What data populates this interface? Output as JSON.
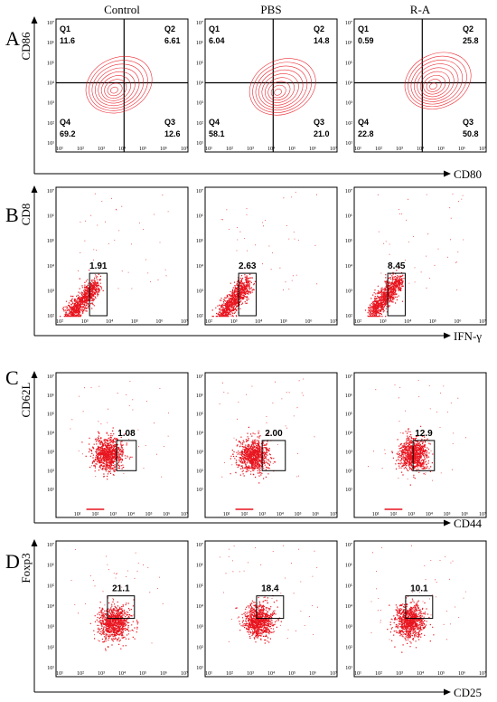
{
  "chart_data": {
    "type": "scatter",
    "column_labels": [
      "Control",
      "PBS",
      "R-A"
    ],
    "tick_labels": [
      "10¹",
      "10²",
      "10³",
      "10⁴",
      "10⁵",
      "10⁶",
      "10⁷"
    ],
    "color": "#e8141e",
    "contour_color": "#e8141e",
    "panels": [
      {
        "letter": "A",
        "plot": "contour",
        "ylabel": "CD86",
        "xlabel": "CD80",
        "quadrant_labels": [
          "Q1",
          "Q2",
          "Q3",
          "Q4"
        ],
        "x_range": [
          1,
          7
        ],
        "y_range": [
          1,
          7
        ],
        "plots": [
          {
            "quadrants": {
              "Q1": "11.6",
              "Q2": "6.61",
              "Q3": "12.6",
              "Q4": "69.2"
            },
            "center_log": [
              3.6,
              3.6
            ]
          },
          {
            "quadrants": {
              "Q1": "6.04",
              "Q2": "14.8",
              "Q3": "21.0",
              "Q4": "58.1"
            },
            "center_log": [
              4.3,
              3.5
            ]
          },
          {
            "quadrants": {
              "Q1": "0.59",
              "Q2": "25.8",
              "Q3": "50.8",
              "Q4": "22.8"
            },
            "center_log": [
              4.6,
              3.8
            ]
          }
        ]
      },
      {
        "letter": "B",
        "plot": "dots",
        "ylabel": "CD8",
        "xlabel": "IFN-γ",
        "x_range": [
          2,
          7
        ],
        "y_range": [
          2,
          7
        ],
        "plots": [
          {
            "gate_value": "1.91",
            "gate_x": [
              3.2,
              3.9
            ],
            "gate_y": [
              2.0,
              3.7
            ],
            "center_log": [
              2.9,
              2.6
            ]
          },
          {
            "gate_value": "2.63",
            "gate_x": [
              3.2,
              3.9
            ],
            "gate_y": [
              2.0,
              3.7
            ],
            "center_log": [
              3.0,
              2.65
            ]
          },
          {
            "gate_value": "8.45",
            "gate_x": [
              3.2,
              3.9
            ],
            "gate_y": [
              2.0,
              3.7
            ],
            "center_log": [
              3.1,
              2.8
            ]
          }
        ]
      },
      {
        "letter": "C",
        "plot": "dots",
        "ylabel": "CD62L",
        "xlabel": "CD44",
        "x_range": [
          0,
          7
        ],
        "y_range": [
          0,
          7
        ],
        "plots": [
          {
            "gate_value": "1.08",
            "gate_x": [
              3.2,
              4.3
            ],
            "gate_y": [
              2.0,
              3.6
            ],
            "center_log": [
              2.7,
              2.9
            ]
          },
          {
            "gate_value": "2.00",
            "gate_x": [
              3.0,
              4.3
            ],
            "gate_y": [
              2.0,
              3.6
            ],
            "center_log": [
              2.5,
              2.8
            ]
          },
          {
            "gate_value": "12.9",
            "gate_x": [
              3.1,
              4.3
            ],
            "gate_y": [
              2.0,
              3.6
            ],
            "center_log": [
              3.1,
              2.9
            ]
          }
        ]
      },
      {
        "letter": "D",
        "plot": "dots",
        "ylabel": "Foxp3",
        "xlabel": "CD25",
        "x_range": [
          1,
          7
        ],
        "y_range": [
          1,
          7
        ],
        "plots": [
          {
            "gate_value": "21.1",
            "gate_x": [
              3.3,
              4.6
            ],
            "gate_y": [
              3.4,
              4.5
            ],
            "center_log": [
              3.6,
              3.2
            ]
          },
          {
            "gate_value": "18.4",
            "gate_x": [
              3.3,
              4.6
            ],
            "gate_y": [
              3.4,
              4.5
            ],
            "center_log": [
              3.4,
              3.3
            ]
          },
          {
            "gate_value": "10.1",
            "gate_x": [
              3.3,
              4.6
            ],
            "gate_y": [
              3.4,
              4.5
            ],
            "center_log": [
              3.5,
              3.3
            ]
          }
        ]
      }
    ]
  }
}
